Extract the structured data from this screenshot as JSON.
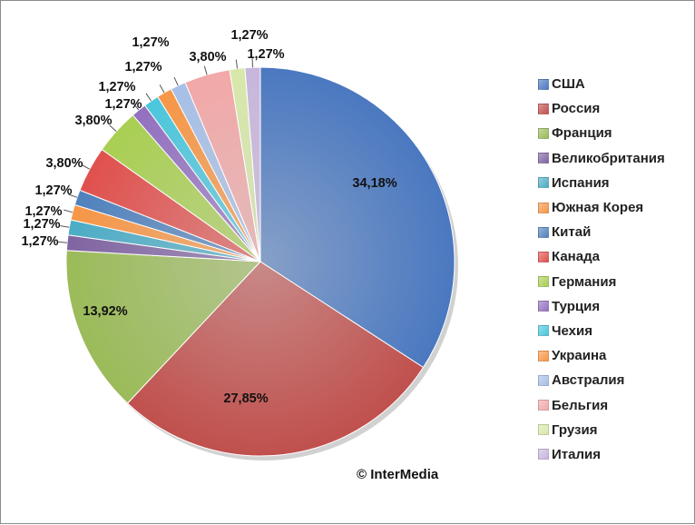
{
  "chart_data": {
    "type": "pie",
    "title": "",
    "slices": [
      {
        "name": "США",
        "value": 34.18,
        "label": "34,18%",
        "color": "#4a78c0"
      },
      {
        "name": "Россия",
        "value": 27.85,
        "label": "27,85%",
        "color": "#c0504d"
      },
      {
        "name": "Франция",
        "value": 13.92,
        "label": "13,92%",
        "color": "#9bbb59"
      },
      {
        "name": "Великобритания",
        "value": 1.27,
        "label": "1,27%",
        "color": "#8064a2"
      },
      {
        "name": "Испания",
        "value": 1.27,
        "label": "1,27%",
        "color": "#4bacc6"
      },
      {
        "name": "Южная Корея",
        "value": 1.27,
        "label": "1,27%",
        "color": "#f79646"
      },
      {
        "name": "Китай",
        "value": 1.27,
        "label": "1,27%",
        "color": "#4f81bd"
      },
      {
        "name": "Канада",
        "value": 3.8,
        "label": "3,80%",
        "color": "#e0504d"
      },
      {
        "name": "Германия",
        "value": 3.8,
        "label": "3,80%",
        "color": "#a9cf52"
      },
      {
        "name": "Турция",
        "value": 1.27,
        "label": "1,27%",
        "color": "#9370c0"
      },
      {
        "name": "Чехия",
        "value": 1.27,
        "label": "1,27%",
        "color": "#4bc6dc"
      },
      {
        "name": "Украина",
        "value": 1.27,
        "label": "1,27%",
        "color": "#f79646"
      },
      {
        "name": "Австралия",
        "value": 1.27,
        "label": "1,27%",
        "color": "#a7bfe6"
      },
      {
        "name": "Бельгия",
        "value": 3.8,
        "label": "3,80%",
        "color": "#f2a8a8"
      },
      {
        "name": "Грузия",
        "value": 1.27,
        "label": "1,27%",
        "color": "#d7e8a9"
      },
      {
        "name": "Италия",
        "value": 1.27,
        "label": "1,27%",
        "color": "#c8b6dc"
      }
    ],
    "legend_position": "right",
    "start": "top, clockwise"
  },
  "footer": {
    "copyright": "© InterMedia"
  }
}
